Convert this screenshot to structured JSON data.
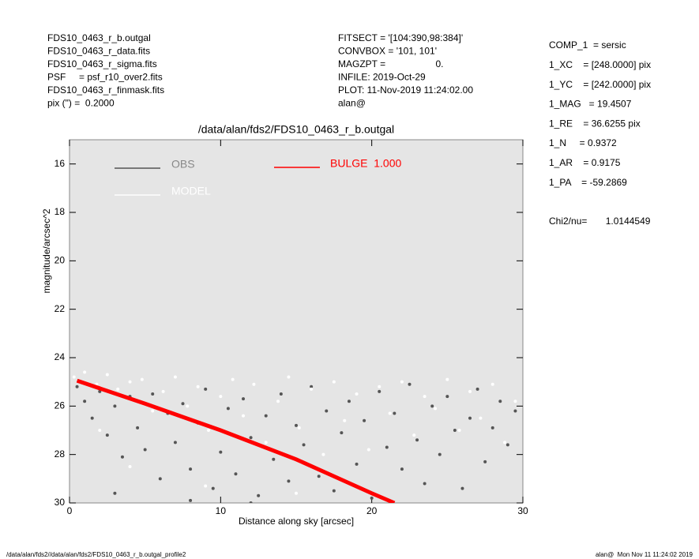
{
  "header": {
    "left": [
      "FDS10_0463_r_b.outgal",
      "FDS10_0463_r_data.fits",
      "FDS10_0463_r_sigma.fits",
      "PSF     = psf_r10_over2.fits",
      "FDS10_0463_r_finmask.fits",
      "pix (\") =  0.2000"
    ],
    "middle": [
      "FITSECT = '[104:390,98:384]'",
      "CONVBOX = '101, 101'",
      "MAGZPT =                   0.",
      "INFILE: 2019-Oct-29",
      "PLOT: 11-Nov-2019 11:24:02.00",
      "alan@"
    ],
    "right": [
      "COMP_1  = sersic",
      "1_XC    = [248.0000] pix",
      "1_YC    = [242.0000] pix",
      "1_MAG   = 19.4507",
      "1_RE    = 36.6255 pix",
      "1_N     = 0.9372",
      "1_AR    = 0.9175",
      "1_PA    = -59.2869"
    ],
    "chi2": "Chi2/nu=       1.0144549"
  },
  "footer": {
    "left": "/data/alan/fds2//data/alan/fds2/FDS10_0463_r_b.outgal_profile2",
    "right": "alan@  Mon Nov 11 11:24:02 2019"
  },
  "chart_data": {
    "type": "scatter",
    "title": "/data/alan/fds2/FDS10_0463_r_b.outgal",
    "x_label": "Distance along sky [arcsec]",
    "y_label": "magnitude/arcsec^2",
    "xlim": [
      0,
      30
    ],
    "xticks": [
      0,
      10,
      20,
      30
    ],
    "ylim": [
      15,
      30
    ],
    "yticks": [
      16,
      18,
      20,
      22,
      24,
      26,
      28,
      30
    ],
    "y_inverted": true,
    "series": [
      {
        "name": "OBS",
        "color": "#555555",
        "kind": "points",
        "x": [
          0.5,
          1,
          1.5,
          2,
          2.5,
          3,
          3.5,
          4,
          4.5,
          5,
          5.5,
          6,
          6.5,
          7,
          7.5,
          8,
          8.5,
          9,
          9.5,
          10,
          10.5,
          11,
          11.5,
          12,
          12.5,
          13,
          13.5,
          14,
          14.5,
          15,
          15.5,
          16,
          16.5,
          17,
          17.5,
          18,
          18.5,
          19,
          19.5,
          20,
          20.5,
          21,
          21.5,
          22,
          22.5,
          23,
          23.5,
          24,
          24.5,
          25,
          25.5,
          26,
          26.5,
          27,
          27.5,
          28,
          28.5,
          29,
          29.5,
          3,
          12,
          8
        ],
        "values": [
          25.2,
          25.8,
          26.5,
          25.4,
          27.2,
          26.0,
          28.1,
          25.6,
          26.9,
          27.8,
          25.5,
          29.0,
          26.3,
          27.5,
          25.9,
          28.6,
          26.7,
          25.3,
          29.4,
          27.9,
          26.1,
          28.8,
          25.7,
          27.3,
          29.7,
          26.4,
          28.2,
          25.5,
          29.1,
          26.8,
          27.6,
          25.2,
          28.9,
          26.2,
          29.5,
          27.1,
          25.8,
          28.4,
          26.6,
          29.8,
          25.4,
          27.7,
          26.3,
          28.6,
          25.1,
          27.4,
          29.2,
          26.0,
          28.0,
          25.6,
          27.0,
          29.4,
          26.5,
          25.3,
          28.3,
          26.9,
          25.8,
          27.6,
          26.2,
          29.6,
          30.0,
          29.9
        ]
      },
      {
        "name": "MODEL",
        "color": "#ffffff",
        "kind": "points",
        "x": [
          0.3,
          1,
          1.8,
          2.5,
          3.2,
          4,
          4.8,
          5.5,
          6.2,
          7,
          7.8,
          8.5,
          9.2,
          10,
          10.8,
          11.5,
          12.2,
          13,
          13.8,
          14.5,
          15.2,
          16,
          16.8,
          17.5,
          18.2,
          19,
          19.8,
          20.5,
          21.2,
          22,
          22.8,
          23.5,
          24.2,
          25,
          25.8,
          26.5,
          27.2,
          28,
          28.8,
          29.5,
          4,
          9,
          15,
          2
        ],
        "values": [
          24.8,
          24.6,
          25.1,
          24.7,
          25.3,
          25.0,
          24.9,
          26.2,
          25.4,
          24.8,
          26.0,
          25.2,
          27.0,
          25.6,
          24.9,
          26.4,
          25.1,
          27.5,
          25.8,
          24.8,
          26.9,
          25.3,
          28.0,
          25.0,
          26.6,
          25.5,
          27.8,
          25.2,
          26.3,
          25.0,
          27.2,
          25.6,
          26.1,
          24.9,
          27.0,
          25.4,
          26.5,
          25.1,
          27.5,
          25.8,
          28.5,
          29.3,
          29.6,
          27.0
        ]
      },
      {
        "name": "BULGE  1.000",
        "color": "#ff0000",
        "kind": "line",
        "x": [
          0.5,
          5,
          10,
          15,
          20,
          21.5
        ],
        "values": [
          24.95,
          25.9,
          27.0,
          28.2,
          29.6,
          30.0
        ]
      }
    ]
  }
}
